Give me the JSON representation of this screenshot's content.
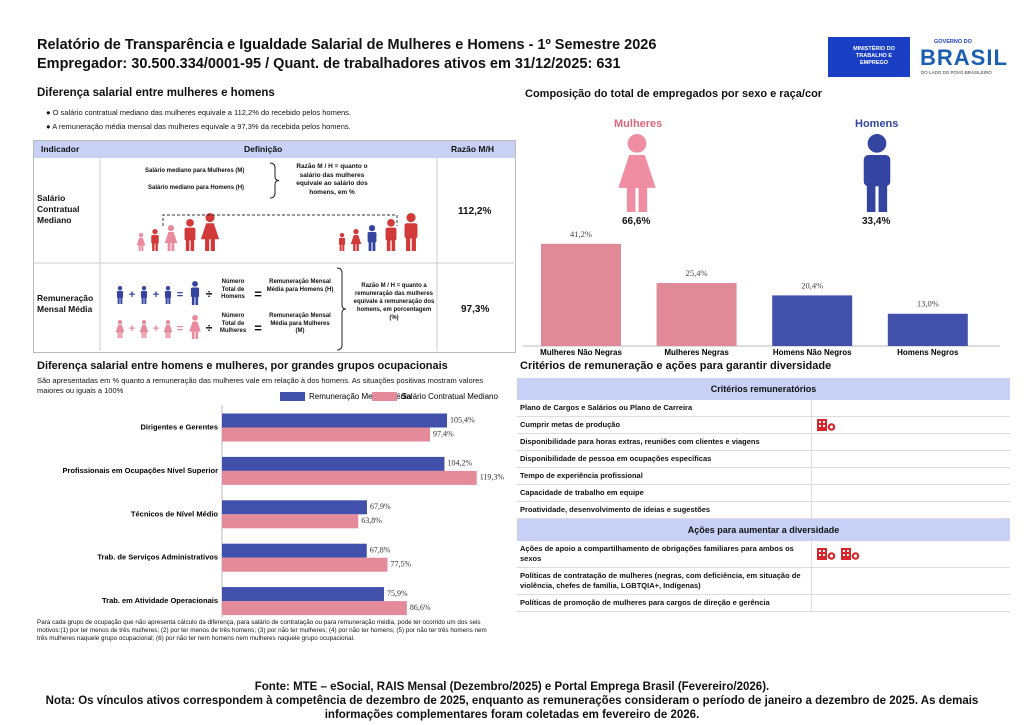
{
  "header": {
    "title": "Relatório de Transparência e Igualdade Salarial de Mulheres e Homens - 1º Semestre 2026",
    "subtitle": "Empregador: 30.500.334/0001-95 / Quant. de trabalhadores ativos em 31/12/2025: 631",
    "ministry": "MINISTÉRIO DO TRABALHO E EMPREGO",
    "gov_top": "GOVERNO DO",
    "gov_name": "BRASIL",
    "gov_tagline": "DO LADO DO POVO BRASILEIRO"
  },
  "salary_gap": {
    "title": "Diferença salarial entre mulheres e homens",
    "bullets": [
      "O salário contratual mediano das mulheres equivale a 112,2% do recebido pelos homens.",
      "A remuneração média mensal das mulheres equivale a 97,3% da recebida pelos homens."
    ],
    "headers": [
      "Indicador",
      "Definição",
      "Razão M/H"
    ],
    "rows": [
      {
        "indicator": "Salário Contratual Mediano",
        "definition": [
          "Salário mediano para Mulheres (M)",
          "Salário mediano para Homens (H)",
          "Razão M / H = quanto o salário das mulheres equivale ao salário dos homens, em %"
        ],
        "ratio": "112,2%"
      },
      {
        "indicator": "Remuneração Mensal Média",
        "definition": [
          "Número Total de Homens",
          "Remuneração Mensal Média para Homens (H)",
          "Número Total de Mulheres",
          "Remuneração Mensal Média para Mulheres (M)",
          "Razão M / H = quanto a remuneração das mulheres equivale à remuneração dos homens, em porcentagem (%)"
        ],
        "ratio": "97,3%"
      }
    ]
  },
  "composition": [
    {
      "label": "Mulheres",
      "share": "66,6%"
    },
    {
      "label": "Homens",
      "share": "33,4%"
    }
  ],
  "chart_data": [
    {
      "type": "bar",
      "title": "Composição do total de empregados por sexo e raça/cor",
      "categories": [
        "Mulheres Não Negras",
        "Mulheres Negras",
        "Homens Não Negros",
        "Homens Negros"
      ],
      "values": [
        41.2,
        25.4,
        20.4,
        13.0
      ],
      "value_labels": [
        "41,2%",
        "25,4%",
        "20,4%",
        "13,0%"
      ],
      "colors": [
        "#e08a99",
        "#e08a99",
        "#4150aa",
        "#4150aa"
      ]
    },
    {
      "type": "barh",
      "title": "Diferença salarial entre homens e mulheres, por grandes grupos ocupacionais",
      "subtitle": "São apresentadas em % quanto a remuneração das mulheres vale em relação à dos homens. As situações positivas mostram valores maiores ou iguais a 100%",
      "categories": [
        "Dirigentes e Gerentes",
        "Profissionais em Ocupações Nível Superior",
        "Técnicos de Nível Médio",
        "Trab. de Serviços Administrativos",
        "Trab. em Atividade Operacionais"
      ],
      "series": [
        {
          "name": "Remuneração Mensal Média",
          "color": "#4150aa",
          "values": [
            105.4,
            104.2,
            67.9,
            67.8,
            75.9
          ],
          "value_labels": [
            "105,4%",
            "104,2%",
            "67,9%",
            "67,8%",
            "75,9%"
          ]
        },
        {
          "name": "Salário Contratual Mediano",
          "color": "#e38b9b",
          "values": [
            97.4,
            119.3,
            63.8,
            77.5,
            86.6
          ],
          "value_labels": [
            "97,4%",
            "119,3%",
            "63,8%",
            "77,5%",
            "86,6%"
          ]
        }
      ],
      "legend": "top",
      "annotation": "Para cada grupo de ocupação que não apresenta cálculo da diferença, para salário de contratação ou para remuneração média, pode ter ocorrido um dos seis motivos:(1) por ter menos de três mulheres; (2) por ter menos de três homens; (3) por não ter mulheres; (4) por não ter homens; (5) por não ter três homens nem três mulheres naquele grupo ocupacional; (6) por não ter nem homens nem mulheres naquele grupo ocupacional."
    }
  ],
  "criteria": {
    "title": "Critérios de remuneração e ações para garantir diversidade",
    "sections": [
      {
        "title": "Critérios remuneratórios",
        "rows": [
          {
            "label": "Plano de Cargos e Salários ou Plano de Carreira",
            "icons": 0
          },
          {
            "label": "Cumprir metas de produção",
            "icons": 1
          },
          {
            "label": "Disponibilidade para horas extras, reuniões com clientes e viagens",
            "icons": 0
          },
          {
            "label": "Disponibilidade de pessoa em ocupações específicas",
            "icons": 0
          },
          {
            "label": "Tempo de experiência profissional",
            "icons": 0
          },
          {
            "label": "Capacidade de trabalho em equipe",
            "icons": 0
          },
          {
            "label": "Proatividade, desenvolvimento de ideias e sugestões",
            "icons": 0
          }
        ]
      },
      {
        "title": "Ações para aumentar a diversidade",
        "rows": [
          {
            "label": "Ações de apoio a compartilhamento de obrigações familiares para ambos os sexos",
            "icons": 2
          },
          {
            "label": "Políticas de contratação de mulheres (negras, com deficiência, em situação de violência, chefes de família, LGBTQIA+, Indígenas)",
            "icons": 0
          },
          {
            "label": "Políticas de promoção de mulheres para cargos de direção e gerência",
            "icons": 0
          }
        ]
      }
    ]
  },
  "footer": {
    "source": "Fonte: MTE – eSocial, RAIS Mensal (Dezembro/2025) e Portal Emprega Brasil (Fevereiro/2026).",
    "note": "Nota: Os vínculos ativos correspondem à competência de dezembro de 2025, enquanto as remunerações consideram o período de janeiro a dezembro de 2025. As demais informações complementares foram coletadas em fevereiro de 2026."
  }
}
